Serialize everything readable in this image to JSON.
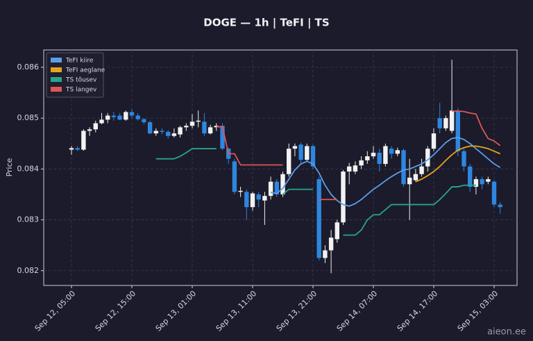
{
  "chart_data": {
    "type": "candlestick",
    "title": "DOGE — 1h  |  TeFI  |  TS",
    "y_label": "Price",
    "watermark": "aieon.ee",
    "up_color": "#f2f2f2",
    "down_color": "#2e86de",
    "grid": true,
    "legend": "upper left",
    "x": [
      "Sep 12, 05:00",
      "Sep 12, 06:00",
      "Sep 12, 07:00",
      "Sep 12, 08:00",
      "Sep 12, 09:00",
      "Sep 12, 10:00",
      "Sep 12, 11:00",
      "Sep 12, 12:00",
      "Sep 12, 13:00",
      "Sep 12, 14:00",
      "Sep 12, 15:00",
      "Sep 12, 16:00",
      "Sep 12, 17:00",
      "Sep 12, 18:00",
      "Sep 12, 19:00",
      "Sep 12, 20:00",
      "Sep 12, 21:00",
      "Sep 12, 22:00",
      "Sep 12, 23:00",
      "Sep 13, 00:00",
      "Sep 13, 01:00",
      "Sep 13, 02:00",
      "Sep 13, 03:00",
      "Sep 13, 04:00",
      "Sep 13, 05:00",
      "Sep 13, 06:00",
      "Sep 13, 07:00",
      "Sep 13, 08:00",
      "Sep 13, 09:00",
      "Sep 13, 10:00",
      "Sep 13, 11:00",
      "Sep 13, 12:00",
      "Sep 13, 13:00",
      "Sep 13, 14:00",
      "Sep 13, 15:00",
      "Sep 13, 16:00",
      "Sep 13, 17:00",
      "Sep 13, 18:00",
      "Sep 13, 19:00",
      "Sep 13, 20:00",
      "Sep 13, 21:00",
      "Sep 13, 22:00",
      "Sep 13, 23:00",
      "Sep 14, 00:00",
      "Sep 14, 01:00",
      "Sep 14, 02:00",
      "Sep 14, 03:00",
      "Sep 14, 04:00",
      "Sep 14, 05:00",
      "Sep 14, 06:00",
      "Sep 14, 07:00",
      "Sep 14, 08:00",
      "Sep 14, 09:00",
      "Sep 14, 10:00",
      "Sep 14, 11:00",
      "Sep 14, 12:00",
      "Sep 14, 13:00",
      "Sep 14, 14:00",
      "Sep 14, 15:00",
      "Sep 14, 16:00",
      "Sep 14, 17:00",
      "Sep 14, 18:00",
      "Sep 14, 19:00",
      "Sep 14, 20:00",
      "Sep 14, 21:00",
      "Sep 14, 22:00",
      "Sep 14, 23:00",
      "Sep 15, 00:00",
      "Sep 15, 01:00",
      "Sep 15, 02:00",
      "Sep 15, 03:00",
      "Sep 15, 04:00"
    ],
    "xticks": [
      "Sep 12, 05:00",
      "Sep 12, 15:00",
      "Sep 13, 01:00",
      "Sep 13, 11:00",
      "Sep 13, 21:00",
      "Sep 14, 07:00",
      "Sep 14, 17:00",
      "Sep 15, 03:00"
    ],
    "open": [
      0.08438,
      0.08441,
      0.08438,
      0.08475,
      0.08478,
      0.0849,
      0.08497,
      0.08505,
      0.08505,
      0.08497,
      0.08512,
      0.08505,
      0.08498,
      0.08492,
      0.0847,
      0.08475,
      0.08473,
      0.08465,
      0.08468,
      0.08482,
      0.08485,
      0.08493,
      0.08493,
      0.0847,
      0.08482,
      0.08485,
      0.0844,
      0.08415,
      0.08355,
      0.08355,
      0.08325,
      0.0835,
      0.08338,
      0.08347,
      0.08375,
      0.0835,
      0.0839,
      0.0844,
      0.08448,
      0.08418,
      0.08445,
      0.0838,
      0.08225,
      0.0824,
      0.08262,
      0.08295,
      0.08395,
      0.08395,
      0.08407,
      0.08417,
      0.08425,
      0.08432,
      0.0841,
      0.0844,
      0.0843,
      0.08437,
      0.0837,
      0.08378,
      0.0839,
      0.08405,
      0.0844,
      0.085,
      0.0848,
      0.08475,
      0.08515,
      0.08435,
      0.08405,
      0.08365,
      0.0838,
      0.08375,
      0.08375,
      0.0833
    ],
    "high": [
      0.08445,
      0.08445,
      0.08478,
      0.08482,
      0.08495,
      0.0851,
      0.0851,
      0.08512,
      0.0851,
      0.08515,
      0.08518,
      0.0851,
      0.085,
      0.08495,
      0.0848,
      0.0848,
      0.08476,
      0.0848,
      0.08485,
      0.0849,
      0.08508,
      0.08515,
      0.0851,
      0.08487,
      0.0849,
      0.0849,
      0.08442,
      0.0842,
      0.08365,
      0.0836,
      0.08355,
      0.08355,
      0.08355,
      0.08385,
      0.0838,
      0.08395,
      0.0845,
      0.0845,
      0.08452,
      0.0845,
      0.08448,
      0.08385,
      0.0825,
      0.0828,
      0.083,
      0.08398,
      0.08412,
      0.08415,
      0.08425,
      0.08435,
      0.08445,
      0.0844,
      0.0845,
      0.08445,
      0.08442,
      0.0844,
      0.0842,
      0.084,
      0.0842,
      0.08445,
      0.0848,
      0.0853,
      0.08505,
      0.08615,
      0.0852,
      0.0844,
      0.0841,
      0.08385,
      0.08385,
      0.08385,
      0.08378,
      0.08335
    ],
    "low": [
      0.08428,
      0.08435,
      0.08436,
      0.08465,
      0.08472,
      0.08488,
      0.0849,
      0.08495,
      0.08496,
      0.08495,
      0.085,
      0.08495,
      0.08488,
      0.08468,
      0.08465,
      0.08468,
      0.0846,
      0.08462,
      0.08462,
      0.08475,
      0.0848,
      0.08482,
      0.08465,
      0.08468,
      0.08475,
      0.08437,
      0.0841,
      0.0835,
      0.08345,
      0.083,
      0.08318,
      0.08325,
      0.0829,
      0.0834,
      0.08345,
      0.08345,
      0.08385,
      0.08425,
      0.08412,
      0.08415,
      0.084,
      0.0822,
      0.08215,
      0.08195,
      0.08255,
      0.0829,
      0.0837,
      0.0839,
      0.084,
      0.0841,
      0.0842,
      0.08395,
      0.08405,
      0.0842,
      0.08425,
      0.08365,
      0.083,
      0.08375,
      0.08385,
      0.08395,
      0.08435,
      0.0847,
      0.08475,
      0.0847,
      0.08425,
      0.08395,
      0.08355,
      0.0835,
      0.0836,
      0.0837,
      0.08325,
      0.08312
    ],
    "close": [
      0.08441,
      0.08438,
      0.08475,
      0.08478,
      0.0849,
      0.08497,
      0.08505,
      0.08502,
      0.08497,
      0.08512,
      0.08505,
      0.08498,
      0.08492,
      0.0847,
      0.08475,
      0.08473,
      0.08465,
      0.0847,
      0.08482,
      0.08485,
      0.08493,
      0.08495,
      0.0847,
      0.08482,
      0.08485,
      0.0844,
      0.0842,
      0.08355,
      0.08357,
      0.08325,
      0.08352,
      0.0834,
      0.08347,
      0.08375,
      0.0835,
      0.0839,
      0.0844,
      0.08445,
      0.08418,
      0.08445,
      0.08405,
      0.08225,
      0.0824,
      0.08265,
      0.08295,
      0.08395,
      0.08405,
      0.08407,
      0.08417,
      0.08425,
      0.08432,
      0.0841,
      0.08445,
      0.0843,
      0.08437,
      0.0837,
      0.08383,
      0.0839,
      0.08405,
      0.0844,
      0.0847,
      0.0848,
      0.085,
      0.08515,
      0.08435,
      0.08405,
      0.08365,
      0.0838,
      0.0837,
      0.0838,
      0.0833,
      0.08325
    ],
    "series": [
      {
        "name": "TeFI kiire",
        "color": "#5b9ee8",
        "values": [
          null,
          null,
          null,
          null,
          null,
          null,
          null,
          null,
          null,
          null,
          null,
          null,
          null,
          null,
          null,
          null,
          null,
          null,
          null,
          null,
          null,
          null,
          null,
          null,
          null,
          null,
          null,
          null,
          null,
          null,
          null,
          null,
          null,
          0.08354,
          0.08352,
          0.08362,
          0.0838,
          0.08398,
          0.0841,
          0.08415,
          0.0841,
          0.08392,
          0.08368,
          0.0835,
          0.08338,
          0.0833,
          0.08327,
          0.08332,
          0.0834,
          0.0835,
          0.0836,
          0.08368,
          0.08377,
          0.08385,
          0.08392,
          0.08398,
          0.084,
          0.08405,
          0.0841,
          0.08418,
          0.08428,
          0.0844,
          0.08452,
          0.0846,
          0.08462,
          0.08458,
          0.0845,
          0.0844,
          0.0843,
          0.0842,
          0.0841,
          0.08403
        ]
      },
      {
        "name": "TeFI aeglane",
        "color": "#e8a31a",
        "values": [
          null,
          null,
          null,
          null,
          null,
          null,
          null,
          null,
          null,
          null,
          null,
          null,
          null,
          null,
          null,
          null,
          null,
          null,
          null,
          null,
          null,
          null,
          null,
          null,
          null,
          null,
          null,
          null,
          null,
          null,
          null,
          null,
          null,
          null,
          null,
          null,
          null,
          null,
          null,
          null,
          null,
          null,
          null,
          null,
          null,
          null,
          null,
          null,
          null,
          null,
          null,
          null,
          null,
          null,
          null,
          null,
          null,
          0.08375,
          0.0838,
          0.08387,
          0.08395,
          0.08405,
          0.08417,
          0.08428,
          0.08437,
          0.08442,
          0.08445,
          0.08445,
          0.08443,
          0.0844,
          0.08435,
          0.0843
        ]
      },
      {
        "name": "TS tõusev",
        "color": "#2aa58a",
        "values": [
          null,
          null,
          null,
          null,
          null,
          null,
          null,
          null,
          null,
          null,
          null,
          null,
          null,
          null,
          0.0842,
          0.0842,
          0.0842,
          0.0842,
          0.08425,
          0.08432,
          0.0844,
          0.0844,
          0.0844,
          0.0844,
          0.0844,
          null,
          null,
          null,
          null,
          null,
          null,
          null,
          null,
          null,
          null,
          0.0835,
          0.0836,
          0.0836,
          0.0836,
          0.0836,
          0.0836,
          null,
          null,
          null,
          null,
          0.0827,
          0.0827,
          0.0827,
          0.0828,
          0.083,
          0.0831,
          0.0831,
          0.0832,
          0.0833,
          0.0833,
          0.0833,
          0.0833,
          0.0833,
          0.0833,
          0.0833,
          0.0833,
          0.0834,
          0.08352,
          0.08365,
          0.08365,
          0.08368,
          0.08368,
          0.08368,
          null,
          null,
          null,
          null
        ]
      },
      {
        "name": "TS langev",
        "color": "#e05555",
        "values": [
          null,
          null,
          null,
          null,
          null,
          null,
          null,
          null,
          null,
          null,
          null,
          null,
          null,
          null,
          null,
          null,
          null,
          null,
          null,
          null,
          null,
          null,
          null,
          null,
          0.08483,
          0.08483,
          0.0843,
          0.0843,
          0.08408,
          0.08408,
          0.08408,
          0.08408,
          0.08408,
          0.08408,
          0.08408,
          0.08408,
          null,
          null,
          null,
          null,
          null,
          0.0834,
          0.0834,
          0.0834,
          0.0834,
          null,
          null,
          null,
          null,
          null,
          null,
          null,
          null,
          null,
          null,
          null,
          null,
          null,
          null,
          null,
          null,
          null,
          null,
          0.08514,
          0.08514,
          0.08513,
          0.0851,
          0.08508,
          0.0848,
          0.0846,
          0.08455,
          0.08446
        ]
      }
    ],
    "ylim": [
      0.08171,
      0.08634
    ],
    "yticks": [
      0.082,
      0.083,
      0.084,
      0.085,
      0.086
    ]
  }
}
